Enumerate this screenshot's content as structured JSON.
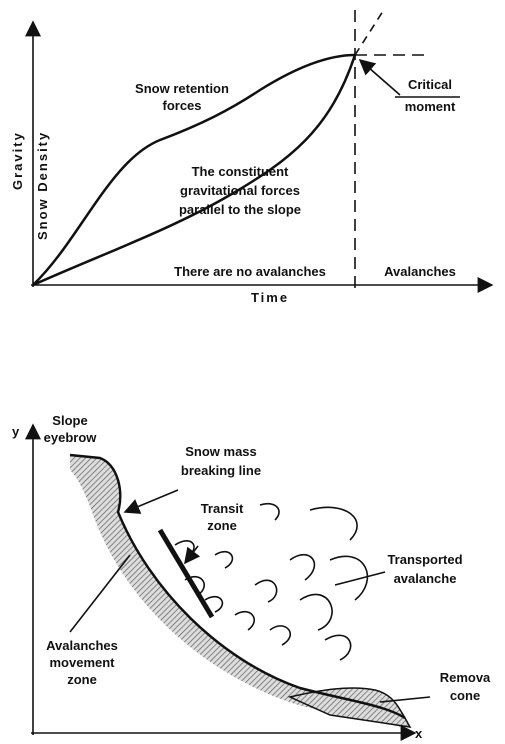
{
  "top_diagram": {
    "axis_labels": {
      "gravity": "Gravity",
      "density": "Snow Density",
      "time": "Time"
    },
    "retention": [
      "Snow retention",
      "forces"
    ],
    "gravitational": [
      "The constituent",
      "gravitational forces",
      "parallel to the slope"
    ],
    "critical": [
      "Critical",
      "moment"
    ],
    "no_avalanches": "There are no avalanches",
    "avalanches": "Avalanches"
  },
  "bottom_diagram": {
    "y_axis": "y",
    "x_axis": "x",
    "eyebrow": [
      "Slope",
      "eyebrow"
    ],
    "breaking": [
      "Snow mass",
      "breaking line"
    ],
    "transit": [
      "Transit",
      "zone"
    ],
    "transported": [
      "Transported",
      "avalanche"
    ],
    "movement": [
      "Avalanches",
      "movement",
      "zone"
    ],
    "cone": [
      "Remova",
      "cone"
    ]
  }
}
